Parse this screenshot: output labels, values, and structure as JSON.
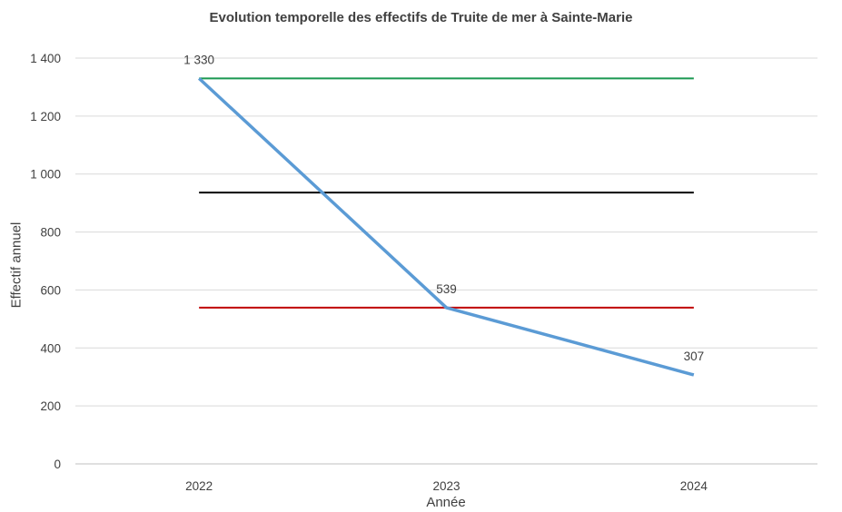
{
  "chart_data": {
    "type": "line",
    "title": "Evolution temporelle des effectifs de Truite de mer à Sainte-Marie",
    "xlabel": "Année",
    "ylabel": "Effectif annuel",
    "categories": [
      "2022",
      "2023",
      "2024"
    ],
    "ylim": [
      0,
      1400
    ],
    "yticks": [
      0,
      200,
      400,
      600,
      800,
      1000,
      1200,
      1400
    ],
    "ytick_labels": [
      "0",
      "200",
      "400",
      "600",
      "800",
      "1 000",
      "1 200",
      "1 400"
    ],
    "grid": true,
    "legend": "none",
    "series": [
      {
        "values": [
          1330,
          539,
          307
        ],
        "data_labels": [
          "1 330",
          "539",
          "307"
        ],
        "color": "#5b9bd5"
      },
      {
        "values": [
          1330,
          1330,
          1330
        ],
        "color": "#1a9850"
      },
      {
        "values": [
          936,
          936,
          936
        ],
        "color": "#000000"
      },
      {
        "values": [
          539,
          539,
          539
        ],
        "color": "#c00000"
      }
    ]
  }
}
